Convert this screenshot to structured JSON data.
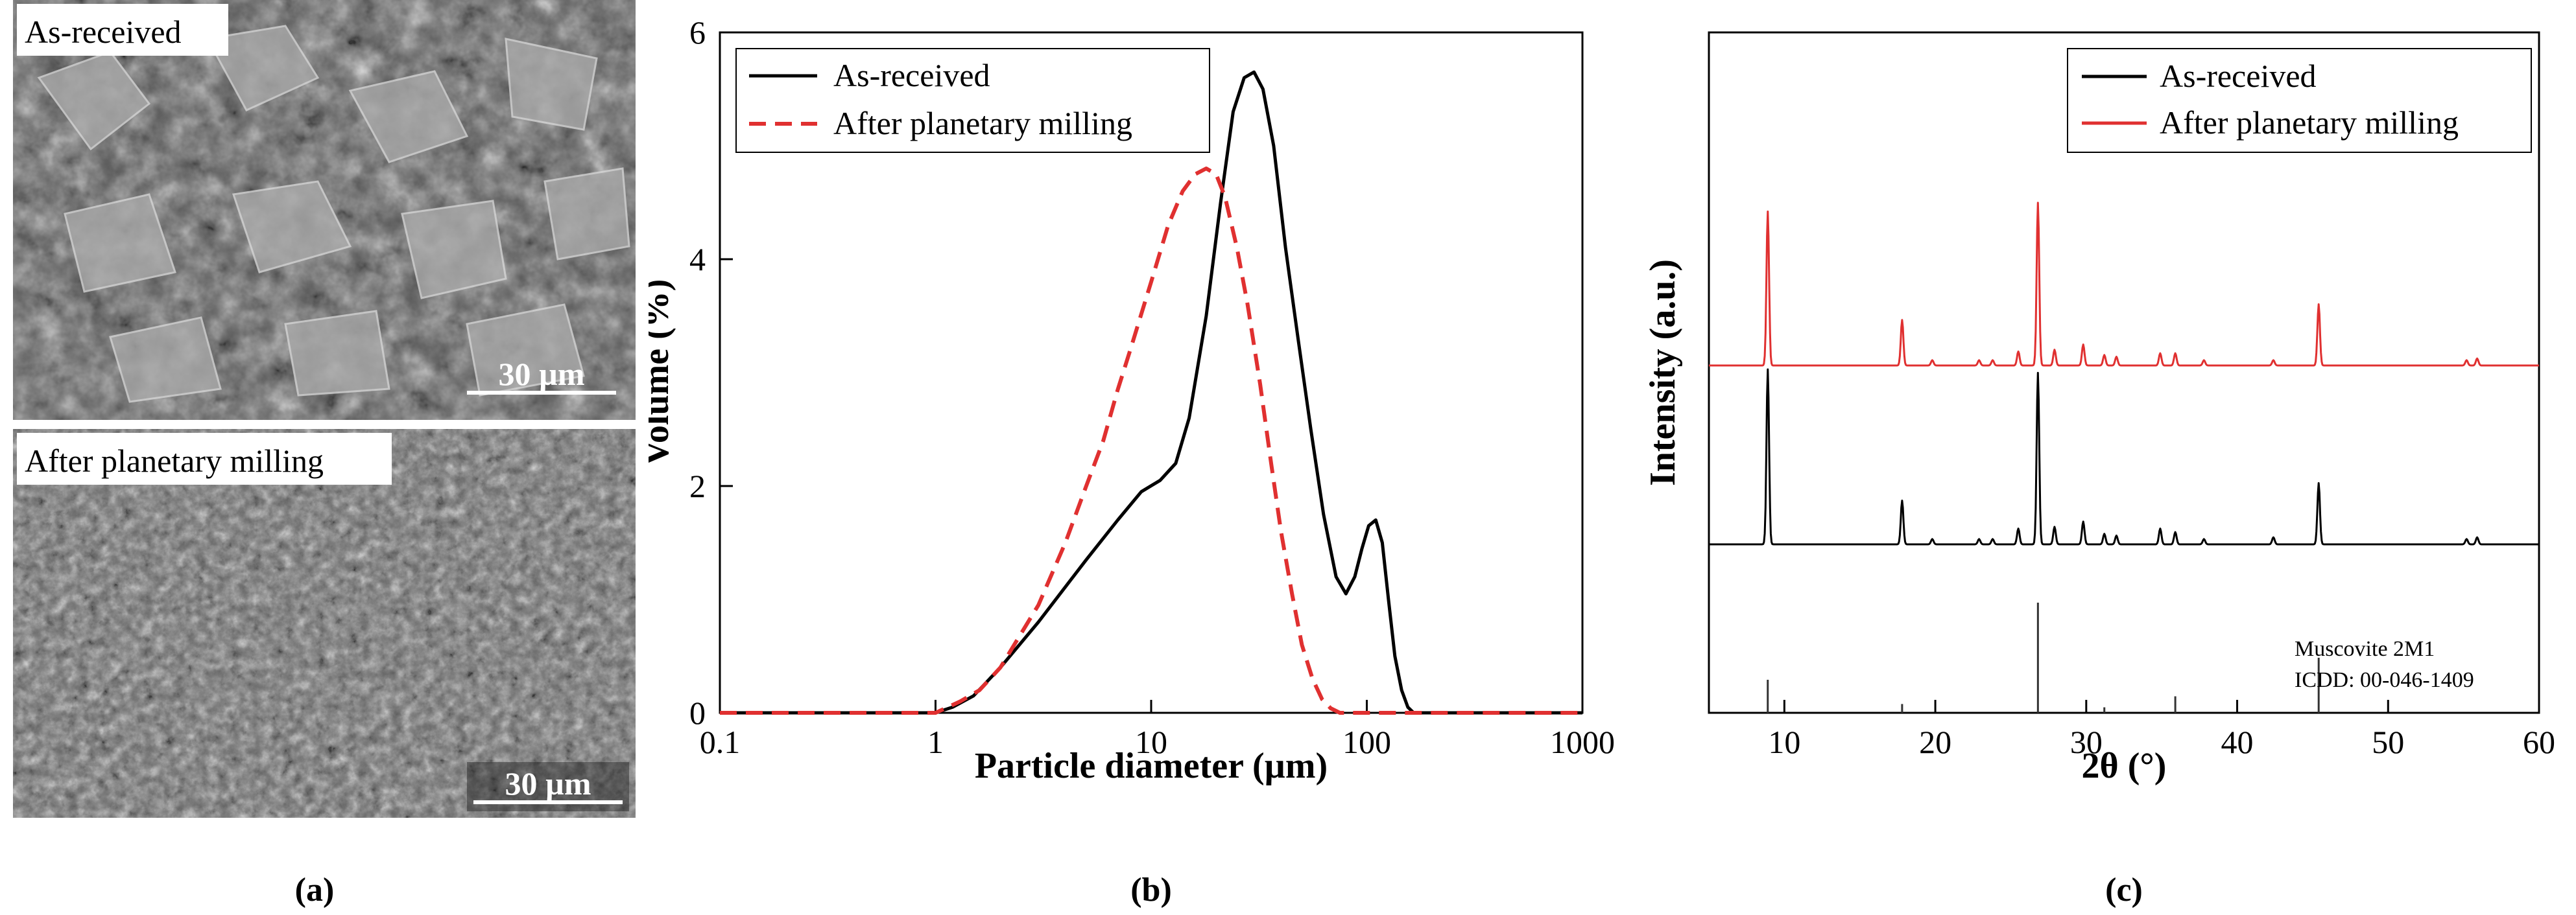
{
  "panel_a": {
    "caption": "(a)",
    "images": [
      {
        "label": "As-received",
        "scale_bar": "30 µm"
      },
      {
        "label": "After planetary milling",
        "scale_bar": "30 µm"
      }
    ]
  },
  "panel_b": {
    "caption": "(b)"
  },
  "panel_c": {
    "caption": "(c)"
  },
  "colors": {
    "black": "#000000",
    "red": "#e03030"
  },
  "chart_data": [
    {
      "type": "line",
      "xscale": "log",
      "xlabel": "Particle diameter (µm)",
      "ylabel": "Volume (%)",
      "xlim": [
        0.1,
        1000
      ],
      "ylim": [
        0,
        6
      ],
      "x_ticks": [
        0.1,
        1,
        10,
        100,
        1000
      ],
      "x_tick_labels": [
        "0.1",
        "1",
        "10",
        "100",
        "1000"
      ],
      "y_ticks": [
        0,
        2,
        4,
        6
      ],
      "y_tick_labels": [
        "0",
        "2",
        "4",
        "6"
      ],
      "legend": "top-left",
      "series": [
        {
          "name": "As-received",
          "style": "solid",
          "color": "#000000",
          "x": [
            0.1,
            1.0,
            1.2,
            1.5,
            2,
            3,
            5,
            7,
            9,
            11,
            13,
            15,
            18,
            21,
            24,
            27,
            30,
            33,
            37,
            42,
            48,
            55,
            63,
            72,
            80,
            88,
            95,
            102,
            110,
            118,
            126,
            135,
            145,
            155,
            165,
            1000
          ],
          "y": [
            0,
            0,
            0.05,
            0.15,
            0.4,
            0.8,
            1.35,
            1.7,
            1.95,
            2.05,
            2.2,
            2.6,
            3.5,
            4.5,
            5.3,
            5.6,
            5.65,
            5.5,
            5.0,
            4.1,
            3.3,
            2.5,
            1.75,
            1.2,
            1.05,
            1.2,
            1.45,
            1.65,
            1.7,
            1.5,
            1.0,
            0.5,
            0.2,
            0.05,
            0,
            0
          ]
        },
        {
          "name": "After planetary milling",
          "style": "dashed",
          "color": "#e03030",
          "x": [
            0.1,
            1.0,
            1.3,
            1.6,
            2,
            3,
            4,
            5,
            6,
            7,
            8,
            10,
            12,
            14,
            16,
            18,
            20,
            22,
            25,
            28,
            32,
            36,
            40,
            45,
            50,
            56,
            62,
            68,
            75,
            85,
            1000
          ],
          "y": [
            0,
            0,
            0.1,
            0.2,
            0.4,
            0.95,
            1.5,
            2.0,
            2.4,
            2.85,
            3.2,
            3.8,
            4.3,
            4.6,
            4.75,
            4.8,
            4.75,
            4.55,
            4.1,
            3.6,
            2.9,
            2.2,
            1.6,
            1.05,
            0.6,
            0.3,
            0.12,
            0.04,
            0,
            0,
            0
          ]
        }
      ]
    },
    {
      "type": "line",
      "xlabel": "2θ (°)",
      "ylabel": "Intensity (a.u.)",
      "xlim": [
        5,
        60
      ],
      "x_ticks": [
        10,
        20,
        30,
        40,
        50,
        60
      ],
      "x_tick_labels": [
        "10",
        "20",
        "30",
        "40",
        "50",
        "60"
      ],
      "y_ticks_shown": false,
      "legend": "top-right",
      "series": [
        {
          "name": "As-received",
          "color": "#000000",
          "baseline": 0,
          "peaks": [
            [
              8.9,
              10.0
            ],
            [
              17.8,
              2.5
            ],
            [
              19.8,
              0.3
            ],
            [
              22.9,
              0.3
            ],
            [
              23.8,
              0.3
            ],
            [
              25.5,
              0.9
            ],
            [
              26.8,
              9.8
            ],
            [
              27.9,
              1.0
            ],
            [
              29.8,
              1.3
            ],
            [
              31.2,
              0.6
            ],
            [
              32.0,
              0.5
            ],
            [
              34.9,
              0.9
            ],
            [
              35.9,
              0.7
            ],
            [
              37.8,
              0.3
            ],
            [
              42.4,
              0.4
            ],
            [
              45.4,
              3.5
            ],
            [
              55.2,
              0.3
            ],
            [
              55.9,
              0.4
            ]
          ]
        },
        {
          "name": "After planetary milling",
          "color": "#e03030",
          "baseline": 11,
          "peaks": [
            [
              8.9,
              8.8
            ],
            [
              17.8,
              2.6
            ],
            [
              19.8,
              0.3
            ],
            [
              22.9,
              0.3
            ],
            [
              23.8,
              0.3
            ],
            [
              25.5,
              0.8
            ],
            [
              26.8,
              9.3
            ],
            [
              27.9,
              0.9
            ],
            [
              29.8,
              1.2
            ],
            [
              31.2,
              0.6
            ],
            [
              32.0,
              0.5
            ],
            [
              34.9,
              0.7
            ],
            [
              35.9,
              0.7
            ],
            [
              37.8,
              0.3
            ],
            [
              42.4,
              0.3
            ],
            [
              45.4,
              3.5
            ],
            [
              55.2,
              0.3
            ],
            [
              55.9,
              0.4
            ]
          ]
        }
      ],
      "reference": {
        "name": "Muscovite 2M1",
        "card": "ICDD: 00-046-1409",
        "lines": [
          [
            8.9,
            3.0
          ],
          [
            17.8,
            0.8
          ],
          [
            26.8,
            10.0
          ],
          [
            31.2,
            0.5
          ],
          [
            35.9,
            1.5
          ],
          [
            45.4,
            5.0
          ]
        ]
      }
    }
  ]
}
